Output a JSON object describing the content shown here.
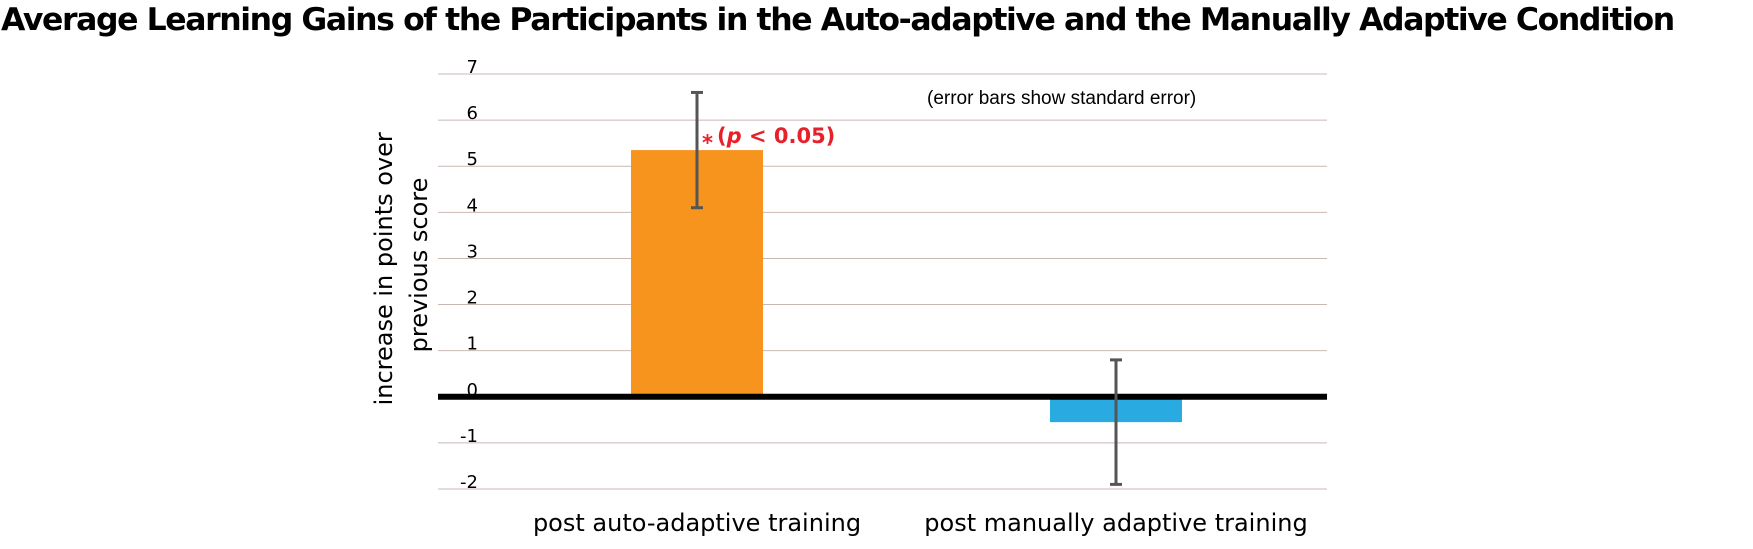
{
  "chart_data": {
    "type": "bar",
    "title": "Average Learning Gains of the Participants in the Auto-adaptive and the Manually Adaptive Condition",
    "xlabel": "",
    "ylabel": [
      "increase in points over",
      "previous score"
    ],
    "categories": [
      "post auto-adaptive training",
      "post manually adaptive training"
    ],
    "values": [
      5.35,
      -0.55
    ],
    "error": [
      1.25,
      1.35
    ],
    "colors": [
      "#f7941d",
      "#29abe2"
    ],
    "ylim": [
      -2,
      7
    ],
    "yticks": [
      "7",
      "6",
      "5",
      "4",
      "3",
      "2",
      "1",
      "0",
      "-1",
      "-2"
    ],
    "grid": true,
    "annotation": "(error bars show standard error)",
    "significance": {
      "category": "post auto-adaptive training",
      "star": "*",
      "p_italic": "p",
      "p_rest": " < 0.05)",
      "open_paren": "(",
      "color": "#e8202a"
    }
  }
}
